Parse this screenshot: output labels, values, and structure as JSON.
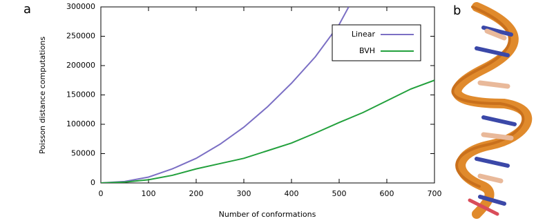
{
  "panel_labels": [
    "a",
    "b"
  ],
  "chart_data": {
    "type": "line",
    "xlabel": "Number of conformations",
    "ylabel": "Poisson distance computations",
    "xlim": [
      0,
      700
    ],
    "ylim": [
      0,
      300000
    ],
    "xticks": [
      0,
      100,
      200,
      300,
      400,
      500,
      600,
      700
    ],
    "yticks": [
      0,
      50000,
      100000,
      150000,
      200000,
      250000,
      300000
    ],
    "grid": false,
    "legend": "upper right",
    "series": [
      {
        "name": "Linear",
        "color": "#7b6fc4",
        "x": [
          0,
          50,
          100,
          150,
          200,
          250,
          300,
          350,
          400,
          450,
          500,
          520
        ],
        "values": [
          0,
          2500,
          10000,
          24000,
          42000,
          66000,
          95000,
          130000,
          170000,
          215000,
          270000,
          300000
        ]
      },
      {
        "name": "BVH",
        "color": "#22a03c",
        "x": [
          0,
          50,
          100,
          150,
          200,
          250,
          300,
          350,
          400,
          450,
          500,
          550,
          600,
          650,
          700
        ],
        "values": [
          0,
          1500,
          5500,
          13000,
          24000,
          33000,
          42000,
          55000,
          68000,
          85000,
          103000,
          120000,
          140000,
          160000,
          175000
        ]
      }
    ]
  }
}
